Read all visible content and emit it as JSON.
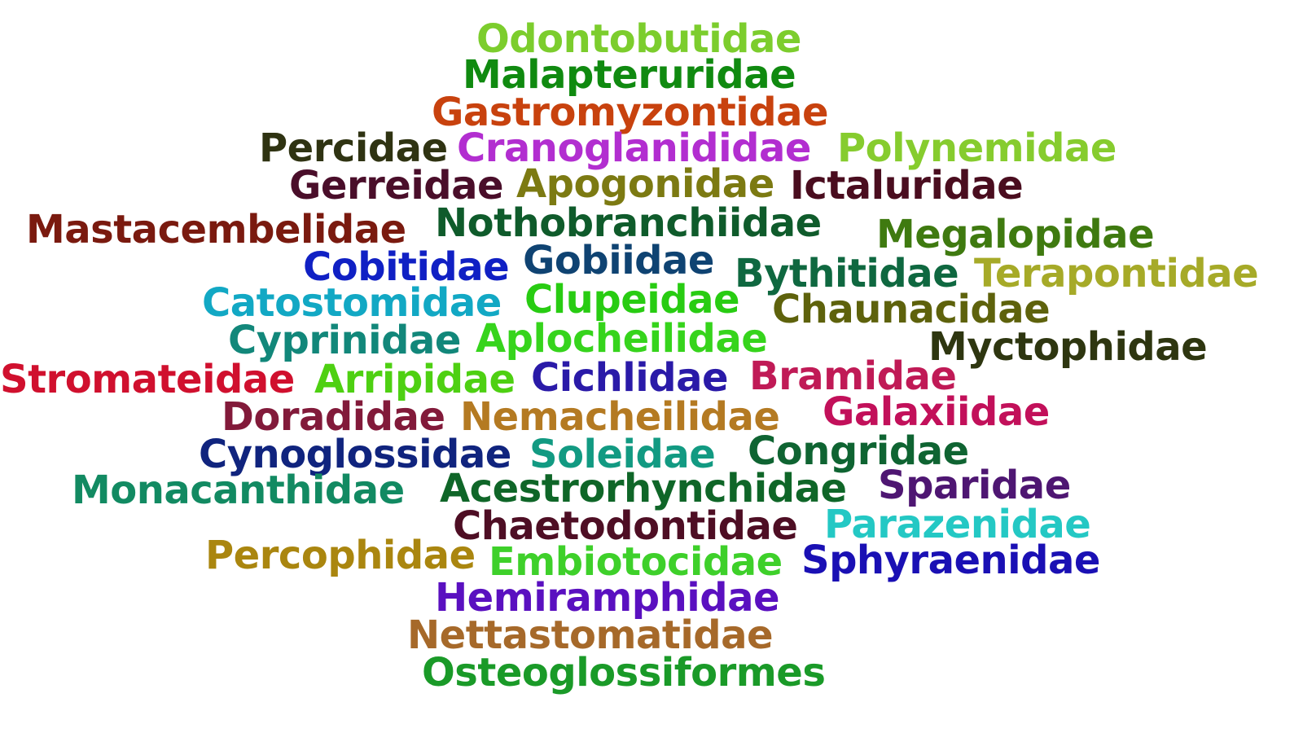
{
  "words": [
    {
      "text": "Odontobutidae",
      "color": "#7ccd2d"
    },
    {
      "text": "Malapteruridae",
      "color": "#108a10"
    },
    {
      "text": "Gastromyzontidae",
      "color": "#c8420e"
    },
    {
      "text": "Percidae",
      "color": "#2f3312"
    },
    {
      "text": "Cranoglanididae",
      "color": "#b22ed0"
    },
    {
      "text": "Polynemidae",
      "color": "#86cc2e"
    },
    {
      "text": "Gerreidae",
      "color": "#4a0e2a"
    },
    {
      "text": "Apogonidae",
      "color": "#7c7a12"
    },
    {
      "text": "Ictaluridae",
      "color": "#4a0d1f"
    },
    {
      "text": "Mastacembelidae",
      "color": "#7a1a0f"
    },
    {
      "text": "Nothobranchiidae",
      "color": "#0f5b2b"
    },
    {
      "text": "Megalopidae",
      "color": "#3f7a10"
    },
    {
      "text": "Cobitidae",
      "color": "#1020c4"
    },
    {
      "text": "Gobiidae",
      "color": "#0f4372"
    },
    {
      "text": "Bythitidae",
      "color": "#0f6840"
    },
    {
      "text": "Terapontidae",
      "color": "#a6aa28"
    },
    {
      "text": "Catostomidae",
      "color": "#12a8c4"
    },
    {
      "text": "Clupeidae",
      "color": "#28cc12"
    },
    {
      "text": "Chaunacidae",
      "color": "#5e620c"
    },
    {
      "text": "Cyprinidae",
      "color": "#12877a"
    },
    {
      "text": "Aplocheilidae",
      "color": "#36d41c"
    },
    {
      "text": "Myctophidae",
      "color": "#2e3610"
    },
    {
      "text": "Stromateidae",
      "color": "#d0102e"
    },
    {
      "text": "Arripidae",
      "color": "#4ed012"
    },
    {
      "text": "Cichlidae",
      "color": "#2a1aa8"
    },
    {
      "text": "Bramidae",
      "color": "#c01a56"
    },
    {
      "text": "Doradidae",
      "color": "#821a3a"
    },
    {
      "text": "Nemacheilidae",
      "color": "#b47a22"
    },
    {
      "text": "Galaxiidae",
      "color": "#c2105a"
    },
    {
      "text": "Cynoglossidae",
      "color": "#10247e"
    },
    {
      "text": "Soleidae",
      "color": "#129a82"
    },
    {
      "text": "Congridae",
      "color": "#0f6432"
    },
    {
      "text": "Monacanthidae",
      "color": "#128a62"
    },
    {
      "text": "Acestrorhynchidae",
      "color": "#0f6628"
    },
    {
      "text": "Sparidae",
      "color": "#4e1672"
    },
    {
      "text": "Chaetodontidae",
      "color": "#4e0e24"
    },
    {
      "text": "Parazenidae",
      "color": "#24c8c4"
    },
    {
      "text": "Percophidae",
      "color": "#aa860f"
    },
    {
      "text": "Embiotocidae",
      "color": "#3ed02a"
    },
    {
      "text": "Sphyraenidae",
      "color": "#1a10b4"
    },
    {
      "text": "Hemiramphidae",
      "color": "#5a10c0"
    },
    {
      "text": "Nettastomatidae",
      "color": "#a6692a"
    },
    {
      "text": "Osteoglossiformes",
      "color": "#1a9a28"
    }
  ]
}
